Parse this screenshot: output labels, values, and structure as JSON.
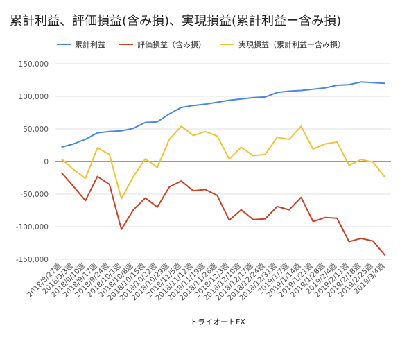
{
  "chart_data": {
    "type": "line",
    "title": "累計利益、評価損益(含み損)、実現損益(累計利益ー含み損)",
    "xlabel": "トライオートFX",
    "ylabel": "",
    "ylim": [
      -150000,
      150000
    ],
    "yticks": [
      150000,
      100000,
      50000,
      0,
      -50000,
      -100000,
      -150000
    ],
    "ytick_labels": [
      "150,000",
      "100,000",
      "50,000",
      "0",
      "-50,000",
      "-100,000",
      "-150,000"
    ],
    "grid": true,
    "legend_position": "top",
    "categories": [
      "2018/8/27週",
      "2018/9/3週",
      "2018/9/10週",
      "2018/9/17週",
      "2018/9/24週",
      "2018/10/1週",
      "2018/10/8週",
      "2018/10/15週",
      "2018/10/22週",
      "2018/10/29週",
      "2018/11/5週",
      "2018/11/12週",
      "2018/11/19週",
      "2018/11/26週",
      "2018/12/3週",
      "2018/12/10週",
      "2018/12/17週",
      "2018/12/24週",
      "2018/12/31週",
      "2019/1/7週",
      "2019/1/14週",
      "2019/1/21週",
      "2019/1/28週",
      "2019/2/4週",
      "2019/2/11週",
      "2019/2/18週",
      "2019/2/25週",
      "2019/3/4週"
    ],
    "series": [
      {
        "name": "累計利益",
        "color": "#4a86e8",
        "values": [
          22000,
          27000,
          34000,
          44000,
          46000,
          47000,
          51000,
          60000,
          61000,
          73000,
          83000,
          86000,
          88000,
          91000,
          94000,
          96000,
          98000,
          99000,
          106000,
          108000,
          109000,
          111000,
          113000,
          117000,
          118000,
          122000,
          121000,
          120000
        ]
      },
      {
        "name": "評価損益（含み損）",
        "color": "#cc4125",
        "values": [
          -17000,
          -38000,
          -60000,
          -23000,
          -35000,
          -104000,
          -74000,
          -56000,
          -70000,
          -39000,
          -30000,
          -45000,
          -43000,
          -52000,
          -90000,
          -74000,
          -89000,
          -88000,
          -69000,
          -74000,
          -55000,
          -92000,
          -86000,
          -87000,
          -123000,
          -118000,
          -122000,
          -144000
        ]
      },
      {
        "name": "実現損益（累計利益ー含み損）",
        "color": "#f1c232",
        "values": [
          4000,
          -12000,
          -26000,
          21000,
          11000,
          -57000,
          -23000,
          4000,
          -9000,
          34000,
          54000,
          40000,
          46000,
          39000,
          4000,
          22000,
          9000,
          11000,
          37000,
          34000,
          54000,
          19000,
          27000,
          30000,
          -6000,
          3000,
          -1000,
          -24000
        ]
      }
    ]
  }
}
